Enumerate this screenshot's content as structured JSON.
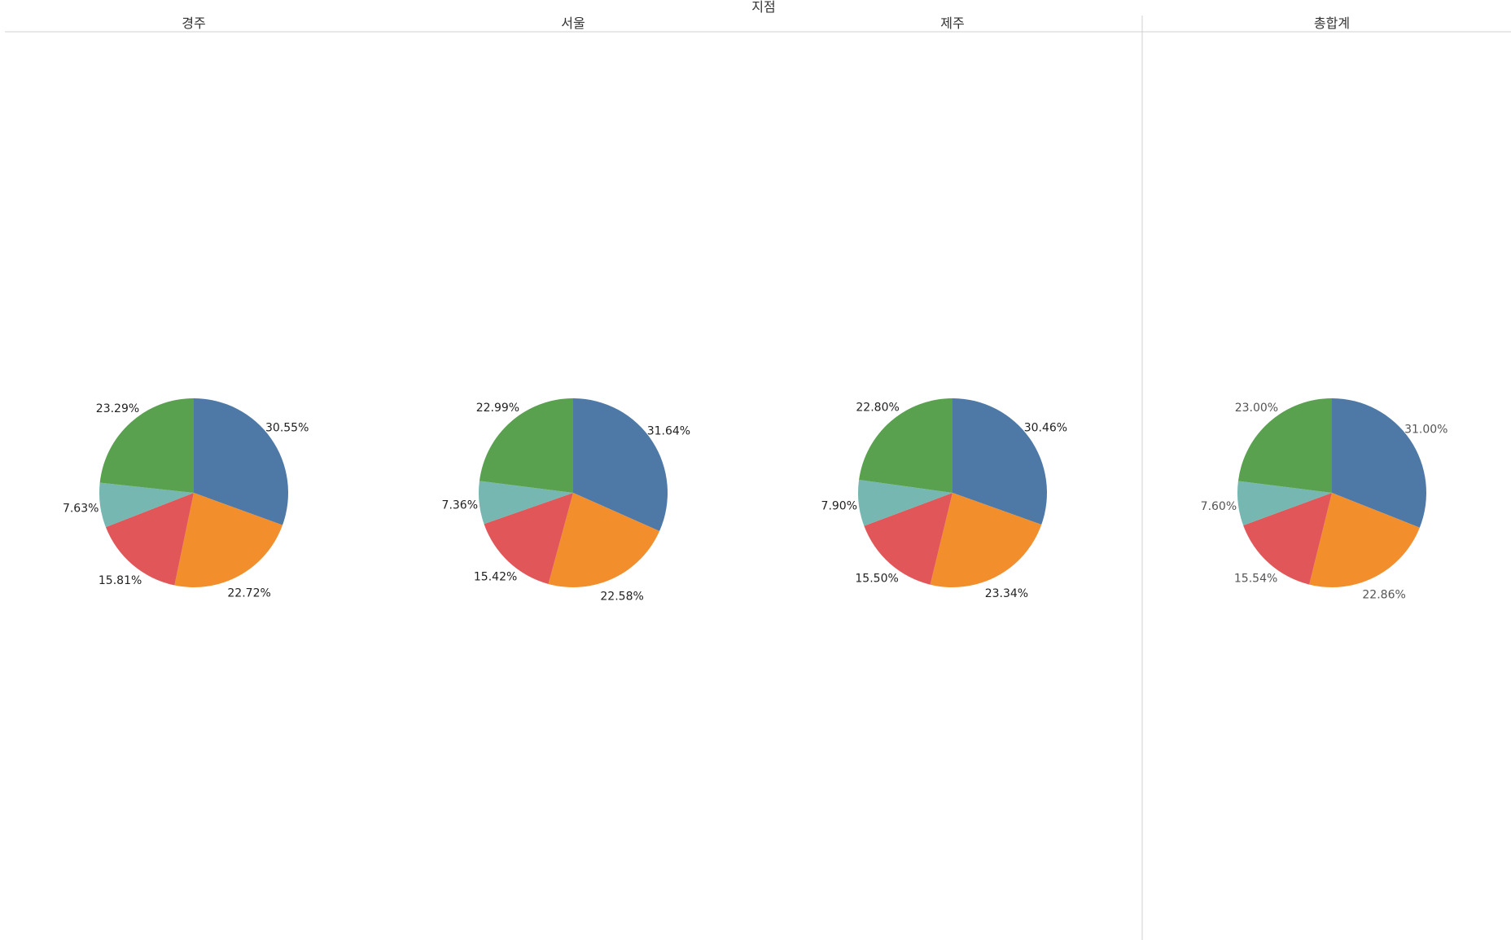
{
  "header": {
    "dimension_title": "지점"
  },
  "colors": {
    "blue": "#4e79a7",
    "orange": "#f28e2b",
    "red": "#e15759",
    "teal": "#76b7b2",
    "green": "#59a14f"
  },
  "chart_data": [
    {
      "type": "pie",
      "title": "경주",
      "slices": [
        {
          "color": "blue",
          "value": 30.55,
          "label": "30.55%"
        },
        {
          "color": "orange",
          "value": 22.72,
          "label": "22.72%"
        },
        {
          "color": "red",
          "value": 15.81,
          "label": "15.81%"
        },
        {
          "color": "teal",
          "value": 7.63,
          "label": "7.63%"
        },
        {
          "color": "green",
          "value": 23.29,
          "label": "23.29%"
        }
      ]
    },
    {
      "type": "pie",
      "title": "서울",
      "slices": [
        {
          "color": "blue",
          "value": 31.64,
          "label": "31.64%"
        },
        {
          "color": "orange",
          "value": 22.58,
          "label": "22.58%"
        },
        {
          "color": "red",
          "value": 15.42,
          "label": "15.42%"
        },
        {
          "color": "teal",
          "value": 7.36,
          "label": "7.36%"
        },
        {
          "color": "green",
          "value": 22.99,
          "label": "22.99%"
        }
      ]
    },
    {
      "type": "pie",
      "title": "제주",
      "slices": [
        {
          "color": "blue",
          "value": 30.46,
          "label": "30.46%"
        },
        {
          "color": "orange",
          "value": 23.34,
          "label": "23.34%"
        },
        {
          "color": "red",
          "value": 15.5,
          "label": "15.50%"
        },
        {
          "color": "teal",
          "value": 7.9,
          "label": "7.90%"
        },
        {
          "color": "green",
          "value": 22.8,
          "label": "22.80%"
        }
      ]
    },
    {
      "type": "pie",
      "title": "총합계",
      "is_total": true,
      "slices": [
        {
          "color": "blue",
          "value": 31.0,
          "label": "31.00%"
        },
        {
          "color": "orange",
          "value": 22.86,
          "label": "22.86%"
        },
        {
          "color": "red",
          "value": 15.54,
          "label": "15.54%"
        },
        {
          "color": "teal",
          "value": 7.6,
          "label": "7.60%"
        },
        {
          "color": "green",
          "value": 23.0,
          "label": "23.00%"
        }
      ]
    }
  ]
}
